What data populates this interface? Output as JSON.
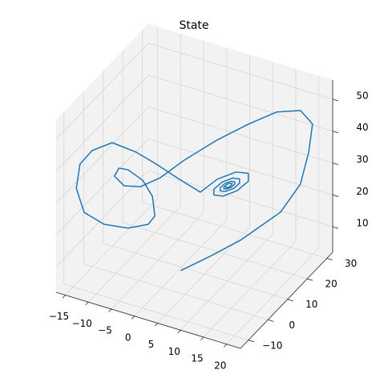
{
  "chart_data": {
    "type": "line3d",
    "title": "State",
    "x": [
      3.0,
      8.4,
      14.0,
      21.7,
      22.0,
      21.8,
      21.6,
      19.0,
      14.8,
      10.7,
      5.8,
      0.8,
      -2.4,
      -4.7,
      -7.2,
      -9.3,
      -9.0,
      -7.4,
      -4.2,
      -2.1,
      -1.2,
      -2.0,
      -5.4,
      -9.6,
      -13.3,
      -15.0,
      -14.8,
      -13.2,
      -9.8,
      -5.6,
      -2.3,
      1.0,
      4.3,
      7.9,
      12.0,
      14.7,
      14.7,
      12.3,
      9.2,
      7.2,
      7.2,
      9.0,
      11.3,
      12.8,
      12.8,
      11.5,
      9.7,
      8.6,
      8.6,
      9.6,
      10.9,
      11.8,
      11.7,
      11.0,
      10.0,
      9.4,
      9.4,
      10.0,
      10.7,
      11.2,
      11.1,
      10.7,
      10.2,
      9.8,
      9.8
    ],
    "y": [
      2.5,
      4.8,
      7.2,
      9.5,
      18.9,
      23.6,
      26.0,
      26.0,
      23.6,
      18.9,
      14.2,
      9.5,
      4.8,
      0.1,
      -2.3,
      -2.3,
      -0.8,
      0.1,
      0.1,
      0.1,
      -0.8,
      -2.3,
      -4.6,
      -7.0,
      -8.4,
      -8.4,
      -7.0,
      -4.6,
      -2.3,
      0.1,
      2.5,
      7.2,
      9.5,
      9.5,
      9.5,
      9.5,
      9.5,
      9.5,
      9.5,
      9.5,
      9.5,
      9.5,
      9.5,
      9.5,
      9.5,
      9.5,
      9.5,
      9.5,
      9.5,
      9.5,
      9.5,
      9.5,
      9.5,
      9.5,
      9.5,
      9.5,
      9.5,
      9.5,
      9.5,
      9.5,
      9.5,
      9.5,
      9.5,
      9.5,
      9.5
    ],
    "z": [
      7.0,
      12.4,
      18.4,
      29.1,
      32.0,
      38.9,
      46.1,
      49.2,
      48.4,
      45.8,
      41.6,
      36.2,
      32.3,
      31.5,
      32.2,
      34.3,
      36.0,
      35.6,
      33.7,
      29.6,
      24.4,
      22.4,
      21.2,
      22.1,
      25.1,
      31.9,
      38.7,
      42.1,
      44.6,
      41.9,
      38.1,
      31.5,
      27.7,
      33.3,
      37.4,
      38.2,
      35.7,
      31.7,
      28.6,
      28.1,
      29.9,
      32.9,
      35.2,
      35.6,
      34.3,
      32.0,
      30.3,
      30.0,
      31.0,
      32.7,
      34.0,
      34.2,
      33.4,
      32.2,
      31.2,
      31.0,
      31.6,
      32.6,
      33.3,
      33.4,
      33.0,
      32.3,
      31.7,
      31.6,
      32.0
    ],
    "color": "#1f77b4",
    "xlim": [
      -17,
      23
    ],
    "ylim": [
      -14,
      33
    ],
    "zlim": [
      2,
      56
    ],
    "xticks": [
      {
        "value": -15,
        "label": "−15"
      },
      {
        "value": -10,
        "label": "−10"
      },
      {
        "value": -5,
        "label": "−5"
      },
      0,
      5,
      10,
      15,
      20
    ],
    "yticks": [
      {
        "value": -10,
        "label": "−10"
      },
      0,
      10,
      20,
      30
    ],
    "zticks": [
      10,
      20,
      30,
      40,
      50
    ],
    "grid": true
  }
}
